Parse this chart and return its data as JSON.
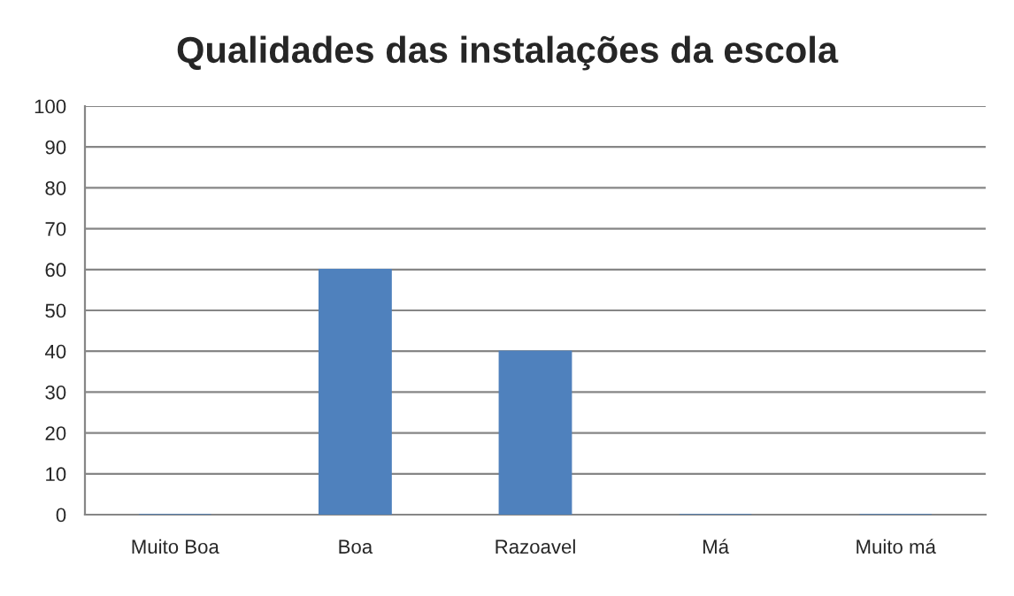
{
  "chart_data": {
    "type": "bar",
    "title": "Qualidades das instalações da escola",
    "categories": [
      "Muito Boa",
      "Boa",
      "Razoavel",
      "Má",
      "Muito má"
    ],
    "values": [
      0,
      60,
      40,
      0,
      0
    ],
    "color": "#4f81bd",
    "ylim": [
      0,
      100
    ],
    "yticks": [
      0,
      10,
      20,
      30,
      40,
      50,
      60,
      70,
      80,
      90,
      100
    ],
    "grid": "y"
  }
}
